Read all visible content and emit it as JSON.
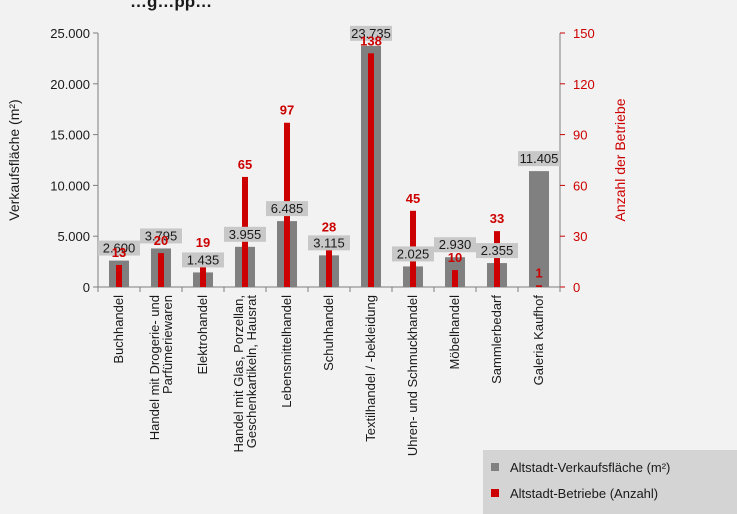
{
  "chart_data": {
    "type": "bar",
    "title": "…g…pp…",
    "categories": [
      "Buchhandel",
      "Handel mit Drogerie- und|Parfümeriewaren",
      "Elektrohandel",
      "Handel mit Glas, Porzellan,|Geschenkartikeln, Hausrat",
      "Lebensmittelhandel",
      "Schuhhandel",
      "Textilhandel / -bekleidung",
      "Uhren- und Schmuckhandel",
      "Möbelhandel",
      "Sammlerbedarf",
      "Galeria Kaufhof"
    ],
    "series": [
      {
        "name": "Altstadt-Verkaufsfläche (m²)",
        "axis": "left",
        "color": "#808080",
        "values": [
          2600,
          3795,
          1435,
          3955,
          6485,
          3115,
          23735,
          2025,
          2930,
          2355,
          11405
        ],
        "labels": [
          "2.600",
          "3.795",
          "1.435",
          "3.955",
          "6.485",
          "3.115",
          "23.735",
          "2.025",
          "2.930",
          "2.355",
          "11.405"
        ]
      },
      {
        "name": "Altstadt-Betriebe (Anzahl)",
        "axis": "right",
        "color": "#cc0000",
        "values": [
          13,
          20,
          19,
          65,
          97,
          28,
          138,
          45,
          10,
          33,
          1
        ],
        "labels": [
          "13",
          "20",
          "19",
          "65",
          "97",
          "28",
          "138",
          "45",
          "10",
          "33",
          "1"
        ]
      }
    ],
    "ylabel": "Verkaufsfläche (m²)",
    "y2label": "Anzahl der Betriebe",
    "ylim": [
      0,
      25000
    ],
    "y2lim": [
      0,
      150
    ],
    "yticks": [
      "0",
      "5.000",
      "10.000",
      "15.000",
      "20.000",
      "25.000"
    ],
    "y2ticks": [
      "0",
      "30",
      "60",
      "90",
      "120",
      "150"
    ],
    "grid": false,
    "legend_position": "bottom-right"
  }
}
